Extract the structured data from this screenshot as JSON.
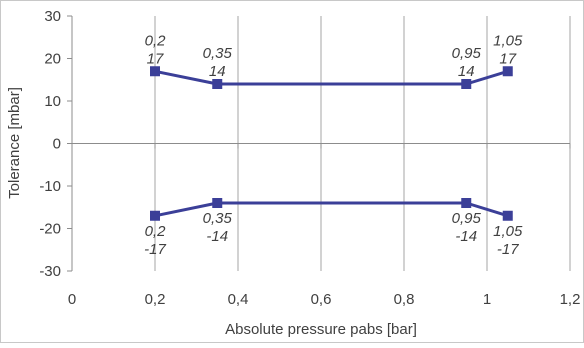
{
  "chart_data": {
    "type": "line",
    "xlabel": "Absolute pressure pabs [bar]",
    "ylabel": "Tolerance [mbar]",
    "xlim": [
      0,
      1.2
    ],
    "ylim": [
      -30,
      30
    ],
    "x_ticks": [
      0,
      0.2,
      0.4,
      0.6,
      0.8,
      1,
      1.2
    ],
    "x_tick_labels": [
      "0",
      "0,2",
      "0,4",
      "0,6",
      "0,8",
      "1",
      "1,2"
    ],
    "y_ticks": [
      -30,
      -20,
      -10,
      0,
      10,
      20,
      30
    ],
    "y_tick_labels": [
      "-30",
      "-20",
      "-10",
      "0",
      "10",
      "20",
      "30"
    ],
    "grid": "vertical",
    "legend": "none",
    "series": [
      {
        "x": [
          0.2,
          0.35,
          0.95,
          1.05
        ],
        "y": [
          17,
          14,
          14,
          17
        ],
        "color": "#3b3f98",
        "marker": "square",
        "point_labels": [
          [
            "0,2",
            "17"
          ],
          [
            "0,35",
            "14"
          ],
          [
            "0,95",
            "14"
          ],
          [
            "1,05",
            "17"
          ]
        ],
        "label_position": "above"
      },
      {
        "x": [
          0.2,
          0.35,
          0.95,
          1.05
        ],
        "y": [
          -17,
          -14,
          -14,
          -17
        ],
        "color": "#3b3f98",
        "marker": "square",
        "point_labels": [
          [
            "0,2",
            "-17"
          ],
          [
            "0,35",
            "-14"
          ],
          [
            "0,95",
            "-14"
          ],
          [
            "1,05",
            "-17"
          ]
        ],
        "label_position": "below"
      }
    ],
    "colors": {
      "series": "#3b3f98",
      "grid": "#a6a6a6",
      "axis": "#8c8c8c",
      "text": "#404040",
      "border": "#c8c8c8"
    }
  }
}
